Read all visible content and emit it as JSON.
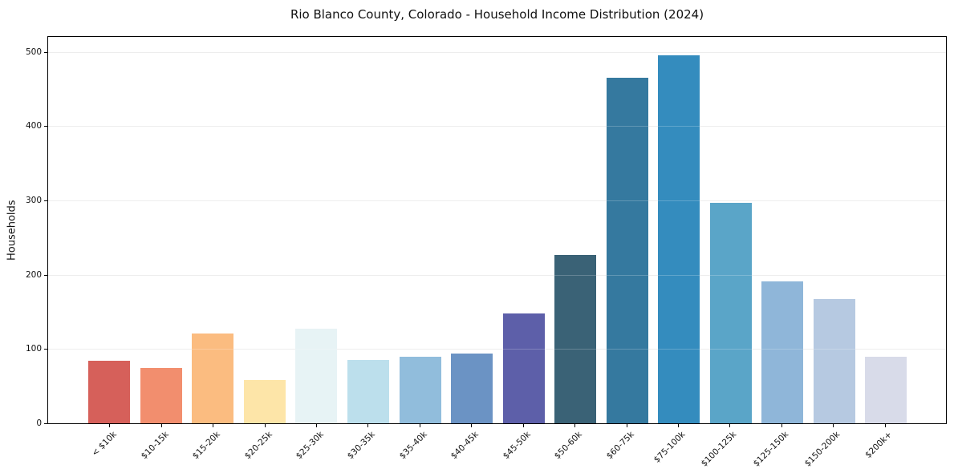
{
  "chart_data": {
    "type": "bar",
    "title": "Rio Blanco County, Colorado - Household Income Distribution (2024)",
    "xlabel": "",
    "ylabel": "Households",
    "categories": [
      "< $10k",
      "$10-15k",
      "$15-20k",
      "$20-25k",
      "$25-30k",
      "$30-35k",
      "$35-40k",
      "$40-45k",
      "$45-50k",
      "$50-60k",
      "$60-75k",
      "$75-100k",
      "$100-125k",
      "$125-150k",
      "$150-200k",
      "$200k+"
    ],
    "values": [
      84,
      74,
      121,
      58,
      127,
      85,
      90,
      94,
      148,
      227,
      465,
      495,
      297,
      191,
      167,
      90
    ],
    "bar_colors": [
      "#d6605a",
      "#f28e6e",
      "#fbbc80",
      "#fde5a8",
      "#e7f3f5",
      "#bcdfec",
      "#91bddc",
      "#6b93c4",
      "#5d5fa9",
      "#3a6276",
      "#35799f",
      "#348cbe",
      "#5aa5c8",
      "#8fb6d9",
      "#b6c9e1",
      "#d8dbe9"
    ],
    "yticks": [
      0,
      100,
      200,
      300,
      400,
      500
    ],
    "ylim": [
      0,
      520
    ],
    "grid": "horizontal",
    "legend": "none",
    "x_tick_rotation_deg": 45
  },
  "colors": {
    "background": "#ffffff",
    "grid": "#e8e8e8",
    "spine": "#000000",
    "text": "#111111"
  }
}
